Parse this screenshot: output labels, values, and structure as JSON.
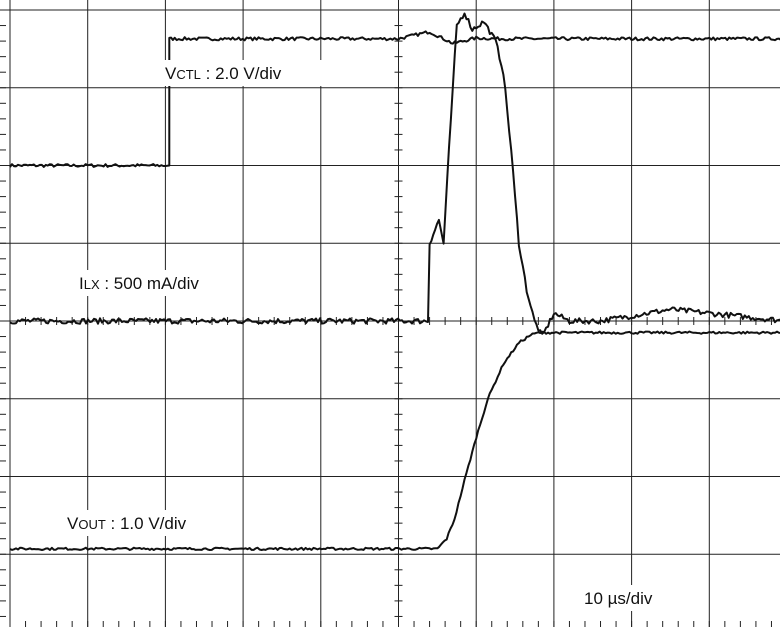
{
  "chart_data": {
    "type": "line",
    "title": "",
    "xlabel": "",
    "ylabel": "",
    "grid": true,
    "x_divisions": 10,
    "y_divisions": 8,
    "timebase": "10 µs/div",
    "time_axis_units": "div (0-10, trigger at 5)",
    "series": [
      {
        "name": "VCTL",
        "scale": "2.0 V/div",
        "label_main": "V",
        "label_sub": "CTL",
        "label_suffix": " : 2.0 V/div",
        "color": "#111111",
        "noise": 0.02,
        "x": [
          0,
          2.05,
          2.05,
          2.12,
          5.0,
          5.4,
          5.7,
          6.0,
          6.3,
          7.0,
          10
        ],
        "y": [
          6.0,
          6.0,
          7.63,
          7.63,
          7.63,
          7.72,
          7.57,
          7.64,
          7.63,
          7.63,
          7.63
        ]
      },
      {
        "name": "ILX",
        "scale": "500 mA/div",
        "label_main": "I",
        "label_sub": "LX",
        "label_suffix": " : 500 mA/div",
        "color": "#111111",
        "noise": 0.035,
        "x": [
          0,
          5.38,
          5.4,
          5.52,
          5.58,
          5.65,
          5.75,
          5.85,
          5.95,
          6.1,
          6.25,
          6.35,
          6.45,
          6.55,
          6.65,
          6.75,
          6.85,
          7.0,
          7.2,
          7.6,
          8.5,
          10
        ],
        "y": [
          4.0,
          4.0,
          5.0,
          5.3,
          5.0,
          6.2,
          7.8,
          7.97,
          7.75,
          7.85,
          7.6,
          7.2,
          6.2,
          5.0,
          4.4,
          4.0,
          3.8,
          4.1,
          4.0,
          4.0,
          4.15,
          4.0
        ]
      },
      {
        "name": "VOUT",
        "scale": "1.0 V/div",
        "label_main": "V",
        "label_sub": "OUT",
        "label_suffix": " : 1.0 V/div",
        "color": "#111111",
        "noise": 0.015,
        "x": [
          0,
          5.5,
          5.62,
          5.72,
          5.85,
          6.0,
          6.15,
          6.35,
          6.55,
          6.7,
          6.8,
          7.0,
          10
        ],
        "y": [
          1.07,
          1.07,
          1.2,
          1.45,
          1.95,
          2.5,
          3.0,
          3.45,
          3.72,
          3.82,
          3.85,
          3.85,
          3.85
        ]
      }
    ]
  }
}
